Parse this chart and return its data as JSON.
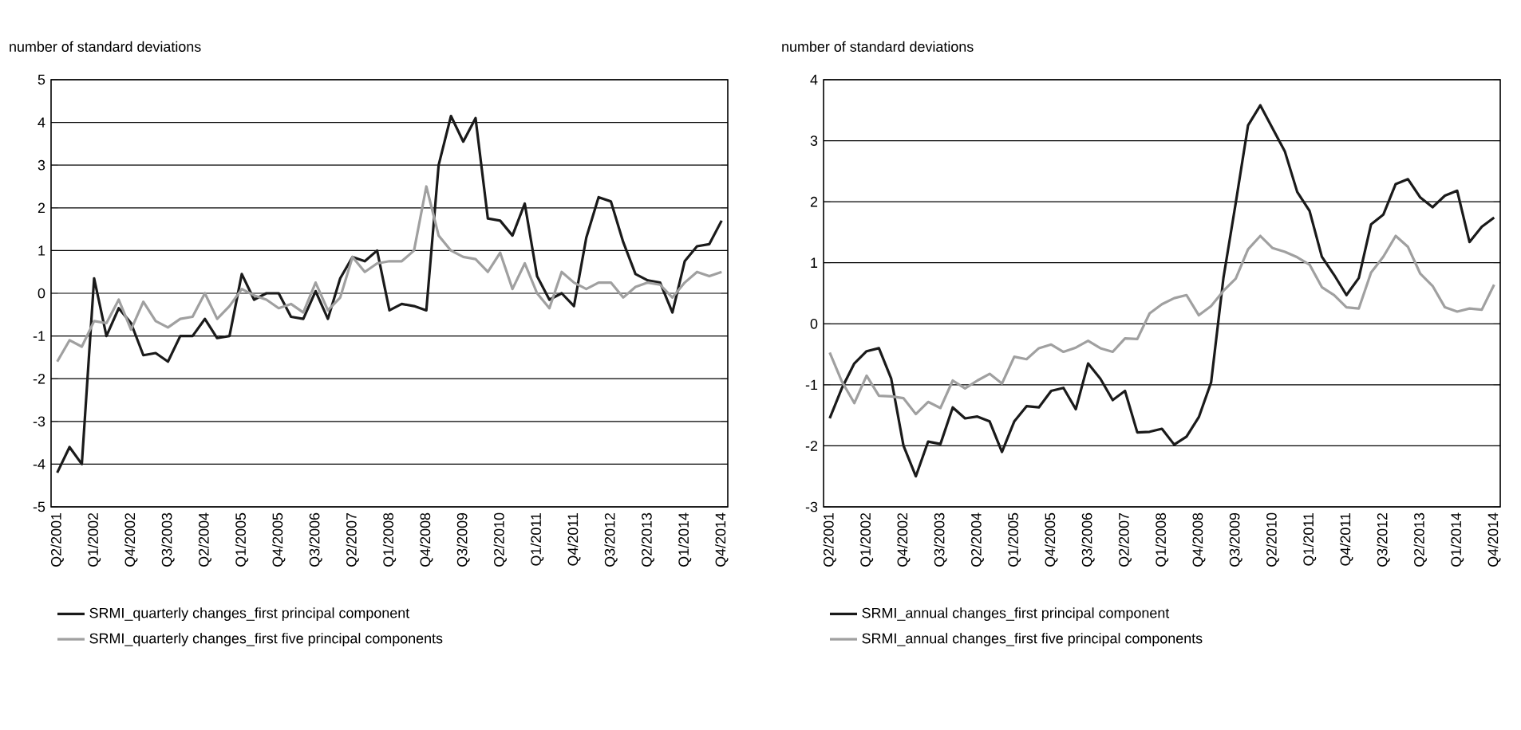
{
  "chart_data": [
    {
      "type": "line",
      "ylabel": "number of standard deviations",
      "categories": [
        "Q2/2001",
        null,
        null,
        "Q1/2002",
        null,
        null,
        "Q4/2002",
        null,
        null,
        "Q3/2003",
        null,
        null,
        "Q2/2004",
        null,
        null,
        "Q1/2005",
        null,
        null,
        "Q4/2005",
        null,
        null,
        "Q3/2006",
        null,
        null,
        "Q2/2007",
        null,
        null,
        "Q1/2008",
        null,
        null,
        "Q4/2008",
        null,
        null,
        "Q3/2009",
        null,
        null,
        "Q2/2010",
        null,
        null,
        "Q1/2011",
        null,
        null,
        "Q4/2011",
        null,
        null,
        "Q3/2012",
        null,
        null,
        "Q2/2013",
        null,
        null,
        "Q1/2014",
        null,
        null,
        "Q4/2014"
      ],
      "series": [
        {
          "name": "SRMI_quarterly changes_first principal component",
          "color": "#1a1a1a",
          "values": [
            -4.2,
            -3.6,
            -4.0,
            0.35,
            -1.0,
            -0.35,
            -0.7,
            -1.45,
            -1.4,
            -1.6,
            -1.0,
            -1.0,
            -0.6,
            -1.05,
            -1.0,
            0.45,
            -0.15,
            0.0,
            0.0,
            -0.55,
            -0.6,
            0.05,
            -0.6,
            0.35,
            0.85,
            0.75,
            1.0,
            -0.4,
            -0.25,
            -0.3,
            -0.4,
            3.0,
            4.15,
            3.55,
            4.1,
            1.75,
            1.7,
            1.35,
            2.1,
            0.4,
            -0.15,
            0.0,
            -0.3,
            1.3,
            2.25,
            2.15,
            1.2,
            0.45,
            0.3,
            0.25,
            -0.45,
            0.75,
            1.1,
            1.15,
            1.7
          ]
        },
        {
          "name": "SRMI_quarterly changes_first five principal components",
          "color": "#a0a0a0",
          "values": [
            -1.6,
            -1.1,
            -1.25,
            -0.65,
            -0.7,
            -0.15,
            -0.85,
            -0.2,
            -0.65,
            -0.8,
            -0.6,
            -0.55,
            0.0,
            -0.6,
            -0.3,
            0.1,
            -0.05,
            -0.15,
            -0.35,
            -0.25,
            -0.45,
            0.25,
            -0.4,
            -0.1,
            0.85,
            0.5,
            0.7,
            0.75,
            0.75,
            1.0,
            2.5,
            1.35,
            1.0,
            0.85,
            0.8,
            0.5,
            0.95,
            0.1,
            0.7,
            0.0,
            -0.35,
            0.5,
            0.25,
            0.1,
            0.25,
            0.25,
            -0.1,
            0.15,
            0.25,
            0.2,
            -0.1,
            0.25,
            0.5,
            0.4,
            0.5
          ]
        }
      ],
      "ylim": [
        -5,
        5
      ],
      "yticks": [
        -5,
        -4,
        -3,
        -2,
        -1,
        0,
        1,
        2,
        3,
        4,
        5
      ],
      "grid": "y",
      "legend": "bottom",
      "marker": "none",
      "line_style": "solid"
    },
    {
      "type": "line",
      "ylabel": "number of standard deviations",
      "categories": [
        "Q2/2001",
        null,
        null,
        "Q1/2002",
        null,
        null,
        "Q4/2002",
        null,
        null,
        "Q3/2003",
        null,
        null,
        "Q2/2004",
        null,
        null,
        "Q1/2005",
        null,
        null,
        "Q4/2005",
        null,
        null,
        "Q3/2006",
        null,
        null,
        "Q2/2007",
        null,
        null,
        "Q1/2008",
        null,
        null,
        "Q4/2008",
        null,
        null,
        "Q3/2009",
        null,
        null,
        "Q2/2010",
        null,
        null,
        "Q1/2011",
        null,
        null,
        "Q4/2011",
        null,
        null,
        "Q3/2012",
        null,
        null,
        "Q2/2013",
        null,
        null,
        "Q1/2014",
        null,
        null,
        "Q4/2014"
      ],
      "series": [
        {
          "name": "SRMI_annual changes_first principal component",
          "color": "#1a1a1a",
          "values": [
            -1.55,
            -1.05,
            -0.65,
            -0.45,
            -0.4,
            -0.9,
            -2.0,
            -2.5,
            -1.93,
            -1.97,
            -1.37,
            -1.55,
            -1.52,
            -1.6,
            -2.1,
            -1.6,
            -1.35,
            -1.37,
            -1.1,
            -1.05,
            -1.4,
            -0.65,
            -0.9,
            -1.25,
            -1.1,
            -1.78,
            -1.77,
            -1.72,
            -1.98,
            -1.85,
            -1.53,
            -0.96,
            0.75,
            1.98,
            3.25,
            3.58,
            3.2,
            2.82,
            2.16,
            1.85,
            1.1,
            0.8,
            0.47,
            0.75,
            1.63,
            1.79,
            2.29,
            2.37,
            2.07,
            1.91,
            2.1,
            2.18,
            1.34,
            1.59,
            1.74
          ]
        },
        {
          "name": "SRMI_annual changes_first five principal components",
          "color": "#a0a0a0",
          "values": [
            -0.47,
            -0.95,
            -1.3,
            -0.85,
            -1.18,
            -1.19,
            -1.22,
            -1.48,
            -1.28,
            -1.38,
            -0.93,
            -1.06,
            -0.93,
            -0.82,
            -0.98,
            -0.54,
            -0.58,
            -0.4,
            -0.34,
            -0.46,
            -0.39,
            -0.28,
            -0.4,
            -0.46,
            -0.24,
            -0.25,
            0.17,
            0.32,
            0.42,
            0.47,
            0.14,
            0.29,
            0.54,
            0.74,
            1.22,
            1.44,
            1.24,
            1.18,
            1.09,
            0.97,
            0.6,
            0.47,
            0.27,
            0.25,
            0.84,
            1.1,
            1.44,
            1.26,
            0.82,
            0.62,
            0.27,
            0.2,
            0.25,
            0.23,
            0.64
          ]
        }
      ],
      "ylim": [
        -3,
        4
      ],
      "yticks": [
        -3,
        -2,
        -1,
        0,
        1,
        2,
        3,
        4
      ],
      "grid": "y",
      "legend": "bottom",
      "marker": "none",
      "line_style": "solid"
    }
  ]
}
